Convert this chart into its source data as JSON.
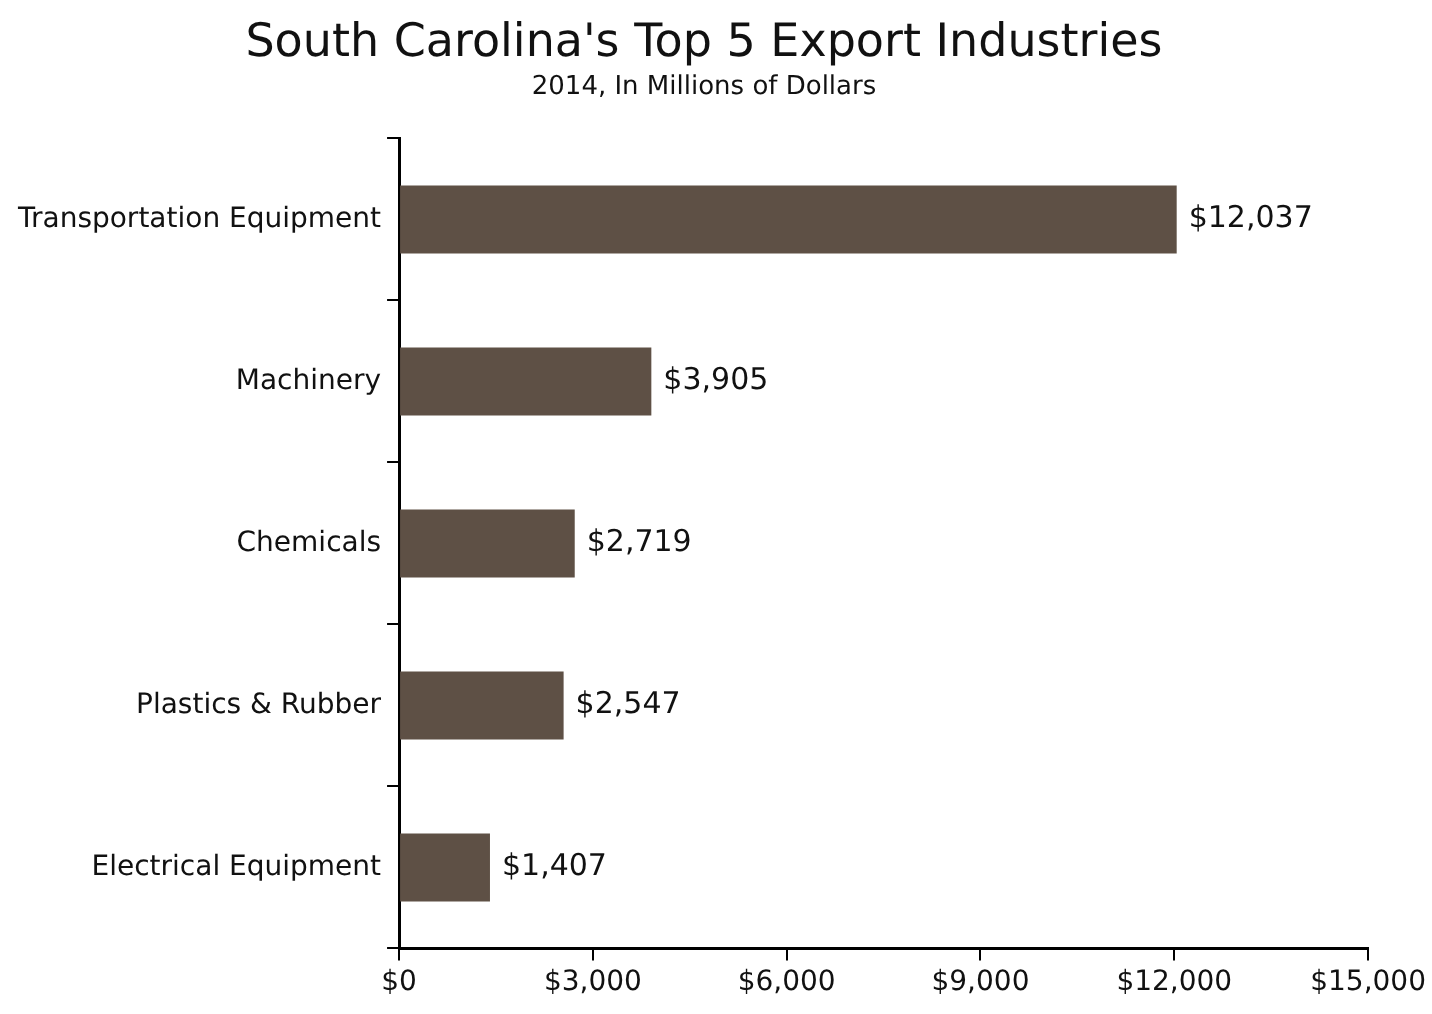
{
  "chart_data": {
    "type": "bar",
    "orientation": "horizontal",
    "title": "South Carolina's Top 5 Export Industries",
    "subtitle": "2014, In Millions of Dollars",
    "categories": [
      "Transportation Equipment",
      "Machinery",
      "Chemicals",
      "Plastics & Rubber",
      "Electrical Equipment"
    ],
    "values": [
      12037,
      3905,
      2719,
      2547,
      1407
    ],
    "value_labels": [
      "$12,037",
      "$3,905",
      "$2,719",
      "$2,547",
      "$1,407"
    ],
    "color": "#5e5045",
    "xlim": [
      0,
      15000
    ],
    "xticks": [
      {
        "value": 0,
        "label": "$0"
      },
      {
        "value": 3000,
        "label": "$3,000"
      },
      {
        "value": 6000,
        "label": "$6,000"
      },
      {
        "value": 9000,
        "label": "$9,000"
      },
      {
        "value": 12000,
        "label": "$12,000"
      },
      {
        "value": 15000,
        "label": "$15,000"
      }
    ],
    "grid": false,
    "legend": false
  }
}
